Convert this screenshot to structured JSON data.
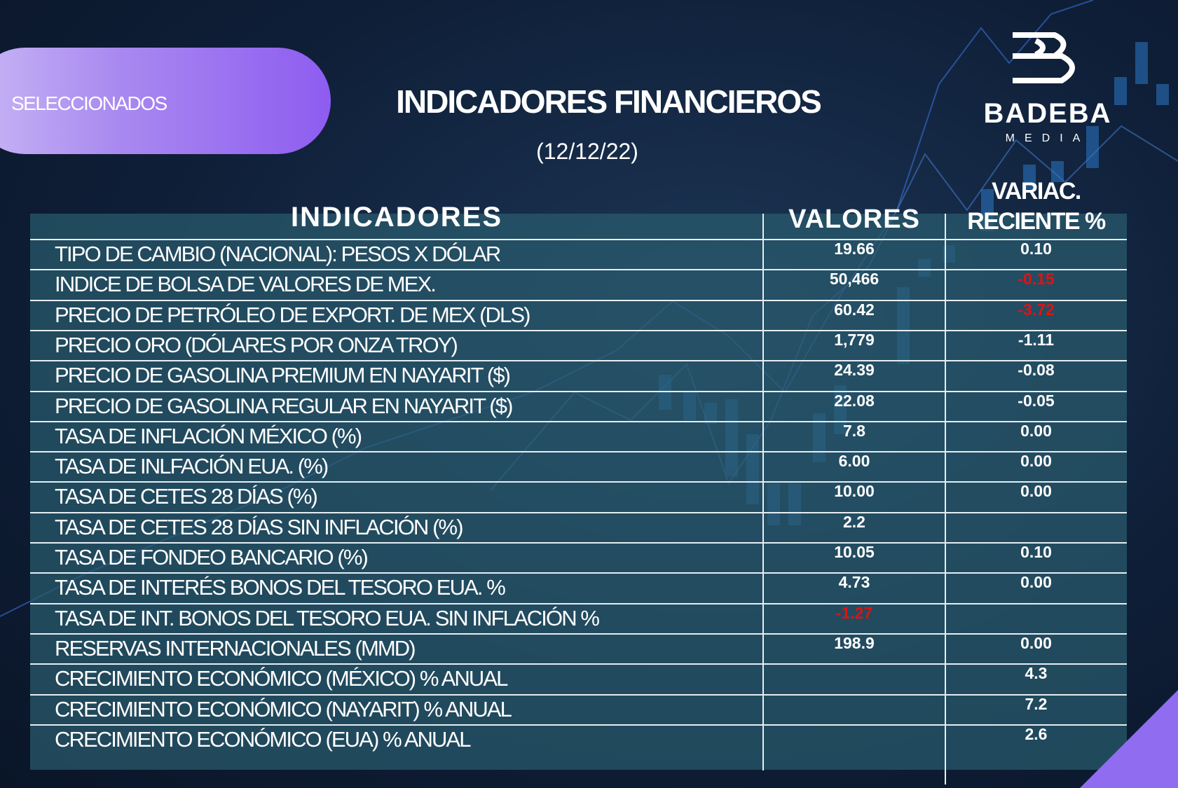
{
  "header": {
    "tag": "SELECCIONADOS",
    "title": "INDICADORES FINANCIEROS",
    "date": "(12/12/22)",
    "logo": {
      "name": "BADEBA",
      "sub": "MEDIA"
    }
  },
  "table": {
    "columns": [
      "INDICADORES",
      "VALORES",
      [
        "VARIAC.",
        "RECIENTE %"
      ]
    ],
    "rows": [
      [
        "TIPO DE CAMBIO (NACIONAL): PESOS X DÓLAR",
        "19.66",
        "0.10"
      ],
      [
        "INDICE DE BOLSA DE VALORES DE MEX.",
        "50,466",
        "-0.15"
      ],
      [
        "PRECIO DE PETRÓLEO DE EXPORT. DE MEX (DLS)",
        "60.42",
        "-3.72"
      ],
      [
        "PRECIO ORO (DÓLARES POR ONZA TROY)",
        "1,779",
        "-1.11"
      ],
      [
        "PRECIO DE GASOLINA PREMIUM EN NAYARIT ($)",
        "24.39",
        "-0.08"
      ],
      [
        "PRECIO DE GASOLINA REGULAR EN NAYARIT ($)",
        "22.08",
        "-0.05"
      ],
      [
        "TASA DE INFLACIÓN MÉXICO (%)",
        "7.8",
        "0.00"
      ],
      [
        "TASA DE INLFACIÓN EUA. (%)",
        "6.00",
        "0.00"
      ],
      [
        "TASA DE CETES 28 DÍAS (%)",
        "10.00",
        "0.00"
      ],
      [
        "TASA DE CETES 28 DÍAS SIN INFLACIÓN (%)",
        "2.2",
        null
      ],
      [
        "TASA DE FONDEO BANCARIO (%)",
        "10.05",
        "0.10"
      ],
      [
        "TASA DE INTERÉS BONOS DEL TESORO EUA. %",
        "4.73",
        "0.00"
      ],
      [
        "TASA DE INT. BONOS DEL TESORO  EUA. SIN INFLACIÓN %",
        "-1.27",
        null
      ],
      [
        "RESERVAS INTERNACIONALES (MMD)",
        "198.9",
        "0.00"
      ],
      [
        "CRECIMIENTO ECONÓMICO (MÉXICO) % ANUAL",
        null,
        "4.3"
      ],
      [
        "CRECIMIENTO ECONÓMICO (NAYARIT) % ANUAL",
        null,
        "7.2"
      ],
      [
        "CRECIMIENTO ECONÓMICO (EUA) % ANUAL",
        null,
        "2.6"
      ]
    ]
  }
}
